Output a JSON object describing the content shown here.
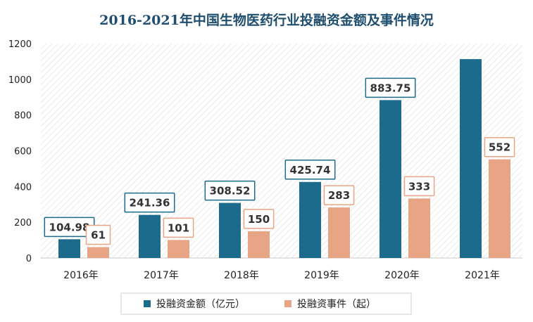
{
  "chart_data": {
    "type": "bar",
    "title": "2016-2021年中国生物医药行业投融资金额及事件情况",
    "categories": [
      "2016年",
      "2017年",
      "2018年",
      "2019年",
      "2020年",
      "2021年"
    ],
    "series": [
      {
        "name": "投融资金额（亿元）",
        "values": [
          104.98,
          241.36,
          308.52,
          425.74,
          883.75,
          1113
        ],
        "labels": [
          "104.98",
          "241.36",
          "308.52",
          "425.74",
          "883.75",
          ""
        ],
        "color": "#1c6b8c"
      },
      {
        "name": "投融资事件（起）",
        "values": [
          61,
          101,
          150,
          283,
          333,
          552
        ],
        "labels": [
          "61",
          "101",
          "150",
          "283",
          "333",
          "552"
        ],
        "color": "#e8a586"
      }
    ],
    "ylim": [
      0,
      1200
    ],
    "yticks": [
      0,
      200,
      400,
      600,
      800,
      1000,
      1200
    ],
    "grid": "hatched",
    "legend_position": "bottom"
  }
}
